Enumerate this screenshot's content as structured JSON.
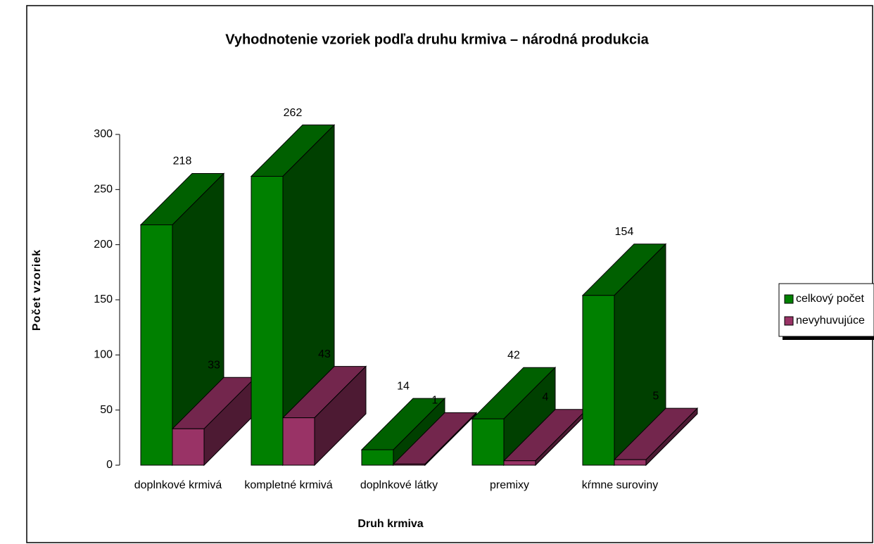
{
  "chart_data": {
    "type": "bar3d",
    "title": "Vyhodnotenie vzoriek podľa druhu krmiva  – národná produkcia",
    "x_label": "Druh krmiva",
    "y_label": "Počet vzoriek",
    "categories": [
      "doplnkové krmivá",
      "kompletné krmivá",
      "doplnkové látky",
      "premixy",
      "kŕmne suroviny"
    ],
    "series": [
      {
        "name": "celkový počet",
        "color": "#008000",
        "values": [
          218,
          262,
          14,
          42,
          154
        ]
      },
      {
        "name": "nevyhuvujúce",
        "color": "#993366",
        "values": [
          33,
          43,
          1,
          4,
          5
        ]
      }
    ],
    "ylim": [
      0,
      300
    ],
    "yticks": [
      0,
      50,
      100,
      150,
      200,
      250,
      300
    ],
    "legend": "right"
  }
}
